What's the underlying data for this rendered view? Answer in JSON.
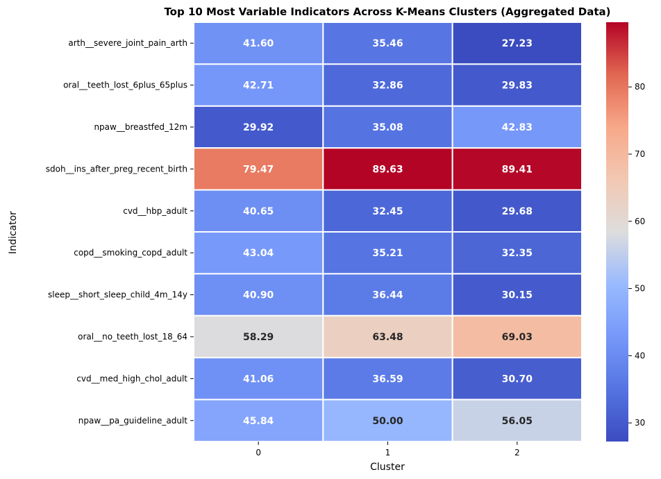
{
  "chart_data": {
    "type": "heatmap",
    "title": "Top 10 Most Variable Indicators Across K-Means Clusters (Aggregated Data)",
    "xlabel": "Cluster",
    "ylabel": "Indicator",
    "x_categories": [
      "0",
      "1",
      "2"
    ],
    "y_categories": [
      "arth__severe_joint_pain_arth",
      "oral__teeth_lost_6plus_65plus",
      "npaw__breastfed_12m",
      "sdoh__ins_after_preg_recent_birth",
      "cvd__hbp_adult",
      "copd__smoking_copd_adult",
      "sleep__short_sleep_child_4m_14y",
      "oral__no_teeth_lost_18_64",
      "cvd__med_high_chol_adult",
      "npaw__pa_guideline_adult"
    ],
    "values": [
      [
        41.6,
        35.46,
        27.23
      ],
      [
        42.71,
        32.86,
        29.83
      ],
      [
        29.92,
        35.08,
        42.83
      ],
      [
        79.47,
        89.63,
        89.41
      ],
      [
        40.65,
        32.45,
        29.68
      ],
      [
        43.04,
        35.21,
        32.35
      ],
      [
        40.9,
        36.44,
        30.15
      ],
      [
        58.29,
        63.48,
        69.03
      ],
      [
        41.06,
        36.59,
        30.7
      ],
      [
        45.84,
        50.0,
        56.05
      ]
    ],
    "value_labels": [
      [
        "41.60",
        "35.46",
        "27.23"
      ],
      [
        "42.71",
        "32.86",
        "29.83"
      ],
      [
        "29.92",
        "35.08",
        "42.83"
      ],
      [
        "79.47",
        "89.63",
        "89.41"
      ],
      [
        "40.65",
        "32.45",
        "29.68"
      ],
      [
        "43.04",
        "35.21",
        "32.35"
      ],
      [
        "40.90",
        "36.44",
        "30.15"
      ],
      [
        "58.29",
        "63.48",
        "69.03"
      ],
      [
        "41.06",
        "36.59",
        "30.70"
      ],
      [
        "45.84",
        "50.00",
        "56.05"
      ]
    ],
    "colormap": "coolwarm",
    "colorbar": {
      "vmin": 27.23,
      "vmax": 89.63,
      "ticks": [
        30,
        40,
        50,
        60,
        70,
        80
      ],
      "tick_labels": [
        "30",
        "40",
        "50",
        "60",
        "70",
        "80"
      ]
    },
    "colors": {
      "low": "#3b4cc0",
      "mid": "#dddddd",
      "high": "#b40426",
      "light_text": "#ffffff",
      "dark_text": "#262626",
      "cell_border": "#ffffff"
    }
  }
}
